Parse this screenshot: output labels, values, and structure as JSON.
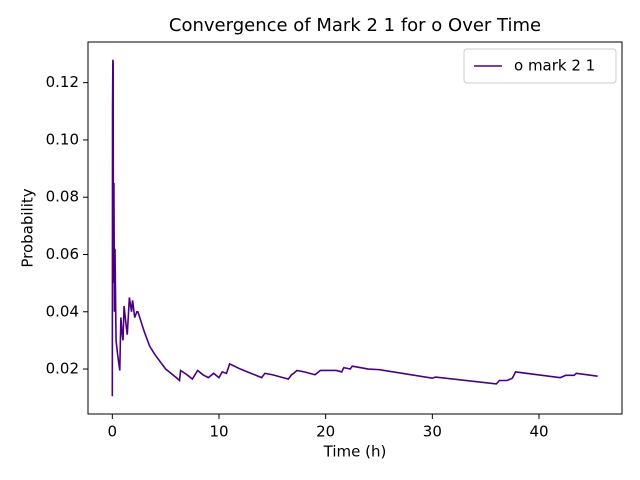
{
  "chart_data": {
    "type": "line",
    "title": "Convergence of Mark 2 1 for o Over Time",
    "x_label": "Time (h)",
    "y_label": "Probability",
    "x": [
      0,
      0.02,
      0.05,
      0.08,
      0.1,
      0.15,
      0.2,
      0.25,
      0.35,
      0.5,
      0.7,
      0.8,
      0.9,
      1.0,
      1.1,
      1.3,
      1.4,
      1.6,
      1.8,
      1.9,
      2.1,
      2.3,
      2.4,
      3,
      3.5,
      4,
      5,
      6,
      6.3,
      6.4,
      7,
      7.5,
      8,
      8.5,
      9,
      9.5,
      10,
      10.3,
      10.7,
      11,
      12,
      13,
      14,
      14.3,
      15,
      16,
      16.5,
      16.8,
      17,
      17.3,
      18,
      19,
      19.5,
      20,
      21,
      21.5,
      21.7,
      22.3,
      22.5,
      24,
      25,
      30,
      30.3,
      36,
      36.3,
      37,
      37.5,
      37.8,
      42,
      42.5,
      43.3,
      43.5,
      45.5
    ],
    "series": [
      {
        "name": "o mark 2 1",
        "color": "#4b0082",
        "values": [
          0.0105,
          0.111,
          0.128,
          0.127,
          0.05,
          0.085,
          0.04,
          0.062,
          0.03,
          0.025,
          0.0195,
          0.038,
          0.033,
          0.03,
          0.042,
          0.035,
          0.032,
          0.045,
          0.04,
          0.044,
          0.038,
          0.04,
          0.04,
          0.033,
          0.028,
          0.025,
          0.02,
          0.017,
          0.016,
          0.0195,
          0.018,
          0.0165,
          0.0195,
          0.018,
          0.017,
          0.0185,
          0.017,
          0.019,
          0.0185,
          0.0218,
          0.02,
          0.0185,
          0.017,
          0.0185,
          0.018,
          0.017,
          0.0165,
          0.018,
          0.0185,
          0.0195,
          0.019,
          0.018,
          0.0195,
          0.0195,
          0.0195,
          0.019,
          0.0205,
          0.02,
          0.021,
          0.02,
          0.0198,
          0.0168,
          0.0172,
          0.0148,
          0.016,
          0.016,
          0.0168,
          0.019,
          0.017,
          0.0178,
          0.0178,
          0.0185,
          0.0175
        ]
      }
    ],
    "xlim": [
      -2.28,
      47.78
    ],
    "xticks": [
      0,
      10,
      20,
      30,
      40
    ],
    "ylim": [
      0.0043,
      0.1342
    ],
    "yticks": [
      0.02,
      0.04,
      0.06,
      0.08,
      {
        "value": 0.1,
        "label": "0.10"
      },
      0.12
    ],
    "legend": "upper right"
  }
}
